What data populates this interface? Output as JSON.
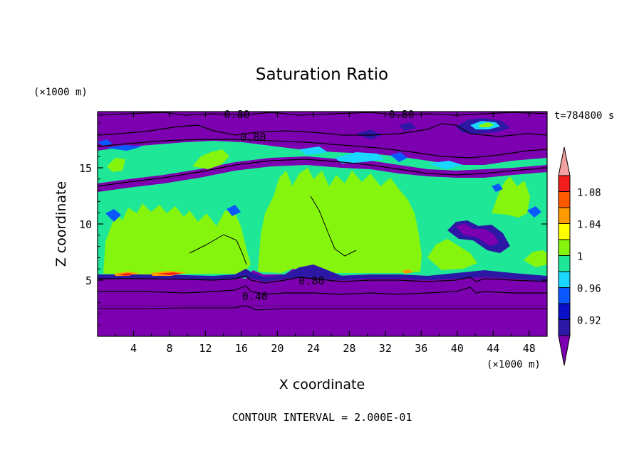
{
  "colors": {
    "purple": "#7d00b0",
    "navy": "#2d18a6",
    "blue2": "#0a0fc8",
    "blue": "#0a58ff",
    "cyan": "#19d7ff",
    "teal": "#1ee898",
    "green": "#86f50e",
    "yellow": "#ffff00",
    "orange": "#ff9b00",
    "red_orange": "#ff5a00",
    "red": "#f21e1e",
    "pink": "#f2a0a0",
    "contour": "#000000"
  },
  "chart_data": {
    "type": "heatmap",
    "title": "Saturation Ratio",
    "xlabel": "X coordinate",
    "ylabel": "Z coordinate",
    "x_unit": "(×1000 m)",
    "y_unit": "(×1000 m)",
    "xlim": [
      0,
      50
    ],
    "ylim": [
      0,
      20
    ],
    "x_ticks": [
      4,
      8,
      12,
      16,
      20,
      24,
      28,
      32,
      36,
      40,
      44,
      48
    ],
    "y_ticks": [
      5,
      10,
      15
    ],
    "time_label": "t=784800 s",
    "footer": "CONTOUR INTERVAL = 2.000E-01",
    "colorbar": {
      "levels": [
        0.9,
        0.92,
        0.94,
        0.96,
        0.98,
        1.0,
        1.02,
        1.04,
        1.06,
        1.08,
        1.1
      ],
      "labels": [
        "0.92",
        "0.96",
        "1",
        "1.04",
        "1.08"
      ],
      "colors": [
        "#2d18a6",
        "#0a0fc8",
        "#0a58ff",
        "#19d7ff",
        "#1ee898",
        "#86f50e",
        "#ffff00",
        "#ff9b00",
        "#ff5a00",
        "#f21e1e"
      ],
      "under_color": "#7d00b0",
      "over_color": "#f2a0a0"
    },
    "contour_labels": [
      {
        "text": "0.80",
        "x": 15.5,
        "z": 19.8
      },
      {
        "text": "0.80",
        "x": 33.8,
        "z": 19.8
      },
      {
        "text": "0.80",
        "x": 17.3,
        "z": 17.8
      },
      {
        "text": "0.80",
        "x": 23.8,
        "z": 5.0
      },
      {
        "text": "0.40",
        "x": 17.5,
        "z": 3.6
      }
    ],
    "regions": [
      {
        "z_min": 0,
        "z_max": 5.3,
        "value": "< 0.90"
      },
      {
        "z_min": 5.3,
        "z_max": 16.8,
        "value": "0.98 – 1.02"
      },
      {
        "z_min": 16.8,
        "z_max": 20,
        "value": "< 0.90"
      }
    ]
  }
}
